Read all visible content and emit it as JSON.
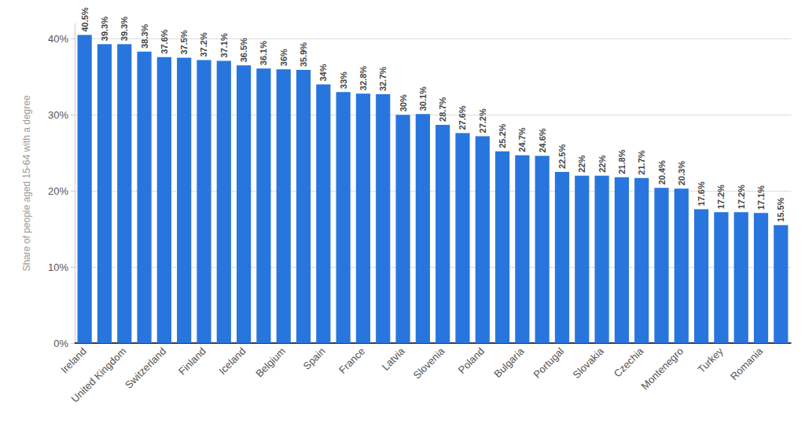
{
  "chart_data": {
    "type": "bar",
    "y_label": "Share of people aged 15-64 with a degree",
    "categories": [
      "Ireland",
      null,
      "United Kingdom",
      null,
      "Switzerland",
      null,
      "Finland",
      null,
      "Iceland",
      null,
      "Belgium",
      null,
      "Spain",
      null,
      "France",
      null,
      "Latvia",
      null,
      "Slovenia",
      null,
      "Poland",
      null,
      "Bulgaria",
      null,
      "Portugal",
      null,
      "Slovakia",
      null,
      "Czechia",
      null,
      "Montenegro",
      null,
      "Turkey",
      null,
      "Romania",
      null
    ],
    "values": [
      40.5,
      39.3,
      39.3,
      38.3,
      37.6,
      37.5,
      37.2,
      37.1,
      36.5,
      36.1,
      36.0,
      35.9,
      34,
      33,
      32.8,
      32.7,
      30.0,
      30.1,
      28.7,
      27.6,
      27.2,
      25.2,
      24.7,
      24.6,
      22.5,
      22,
      22,
      21.8,
      21.7,
      20.4,
      20.3,
      17.6,
      17.2,
      17.2,
      17.1,
      15.5
    ],
    "value_labels": [
      "40.5%",
      "39.3%",
      "39.3%",
      "38.3%",
      "37.6%",
      "37.5%",
      "37.2%",
      "37.1%",
      "36.5%",
      "36.1%",
      "36%",
      "35.9%",
      "34%",
      "33%",
      "32.8%",
      "32.7%",
      "30%",
      "30.1%",
      "28.7%",
      "27.6%",
      "27.2%",
      "25.2%",
      "24.7%",
      "24.6%",
      "22.5%",
      "22%",
      "22%",
      "21.8%",
      "21.7%",
      "20.4%",
      "20.3%",
      "17.6%",
      "17.2%",
      "17.2%",
      "17.1%",
      "15.5%"
    ],
    "color": "#2876dd",
    "ylim": [
      0,
      42
    ],
    "yticks": [
      {
        "value": 0,
        "label": "0%"
      },
      {
        "value": 10,
        "label": "10%"
      },
      {
        "value": 20,
        "label": "20%"
      },
      {
        "value": 30,
        "label": "30%"
      },
      {
        "value": 40,
        "label": "40%"
      }
    ],
    "grid": true,
    "data_labels": true
  }
}
